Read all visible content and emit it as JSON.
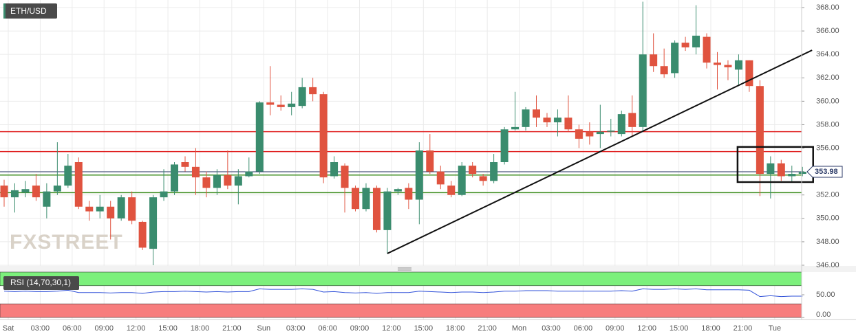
{
  "chart_data": [
    {
      "type": "candlestick",
      "title": "ETH/USD",
      "watermark": "FXSTREET",
      "categories": [
        "Sat",
        null,
        null,
        "03:00",
        null,
        null,
        "06:00",
        null,
        null,
        "09:00",
        null,
        null,
        "12:00",
        null,
        null,
        "15:00",
        null,
        null,
        "18:00",
        null,
        null,
        "21:00",
        null,
        null,
        "Sun",
        null,
        null,
        "03:00",
        null,
        null,
        "06:00",
        null,
        null,
        "09:00",
        null,
        null,
        "12:00",
        null,
        null,
        "15:00",
        null,
        null,
        "18:00",
        null,
        null,
        "21:00",
        null,
        null,
        "Mon",
        null,
        null,
        "03:00",
        null,
        null,
        "06:00",
        null,
        null,
        "09:00",
        null,
        null,
        "12:00",
        null,
        null,
        "15:00",
        null,
        null,
        "18:00",
        null,
        null,
        "21:00",
        null,
        null,
        "Tue",
        null,
        null,
        null
      ],
      "open": [
        352.8,
        351.8,
        352.2,
        352.8,
        351.0,
        352.3,
        352.8,
        354.8,
        351.0,
        350.6,
        351.0,
        350.0,
        351.8,
        349.7,
        347.4,
        351.8,
        352.3,
        354.8,
        354.4,
        353.5,
        352.6,
        353.7,
        352.8,
        353.6,
        354.0,
        359.9,
        359.7,
        359.5,
        359.6,
        361.2,
        360.6,
        353.6,
        354.5,
        352.6,
        350.8,
        352.6,
        349.0,
        352.3,
        352.6,
        351.6,
        355.8,
        354.0,
        352.8,
        352.0,
        354.5,
        353.6,
        353.2,
        354.8,
        357.6,
        357.8,
        359.3,
        358.6,
        358.2,
        358.6,
        357.6,
        357.4,
        357.2,
        357.4,
        357.2,
        359.0,
        357.8,
        364.0,
        363.0,
        362.4,
        365.0,
        364.6,
        365.5,
        363.3,
        363.1,
        362.7,
        363.5,
        361.3,
        353.8,
        354.7,
        353.6,
        353.8
      ],
      "high": [
        353.3,
        353.0,
        353.2,
        353.8,
        353.0,
        356.5,
        355.5,
        355.2,
        351.5,
        352.0,
        351.5,
        352.0,
        352.3,
        349.8,
        352.0,
        354.2,
        354.8,
        355.3,
        356.0,
        354.0,
        354.2,
        355.8,
        354.2,
        355.2,
        360.0,
        363.0,
        360.5,
        360.8,
        362.0,
        362.0,
        360.8,
        355.3,
        354.7,
        352.8,
        353.0,
        352.8,
        352.6,
        352.6,
        353.0,
        356.5,
        357.2,
        354.5,
        353.2,
        354.8,
        354.8,
        353.8,
        355.5,
        357.8,
        360.8,
        359.5,
        360.5,
        359.0,
        359.3,
        360.5,
        358.0,
        358.2,
        359.7,
        358.5,
        359.2,
        360.5,
        368.5,
        365.8,
        364.5,
        365.2,
        365.5,
        368.2,
        365.8,
        364.2,
        363.5,
        364.0,
        363.5,
        361.8,
        355.3,
        355.0,
        354.5,
        354.4
      ],
      "low": [
        351.0,
        350.5,
        351.8,
        351.5,
        350.0,
        352.0,
        352.6,
        350.8,
        349.8,
        350.0,
        348.2,
        349.8,
        349.5,
        347.3,
        346.0,
        351.5,
        352.0,
        354.0,
        352.0,
        351.8,
        352.0,
        352.5,
        351.2,
        353.5,
        353.8,
        358.8,
        359.2,
        358.8,
        359.4,
        360.0,
        353.0,
        353.4,
        350.5,
        350.6,
        350.6,
        348.8,
        347.0,
        352.0,
        350.8,
        349.5,
        353.8,
        352.5,
        351.8,
        351.9,
        353.5,
        352.8,
        353.0,
        354.6,
        357.5,
        357.5,
        357.8,
        357.8,
        357.0,
        357.4,
        356.0,
        356.3,
        356.0,
        357.0,
        357.0,
        357.0,
        357.5,
        362.5,
        362.0,
        362.0,
        364.3,
        364.0,
        362.8,
        361.0,
        361.8,
        361.3,
        360.8,
        351.9,
        351.7,
        353.2,
        353.1,
        353.6
      ],
      "close": [
        351.8,
        352.4,
        352.5,
        351.8,
        352.3,
        352.8,
        354.5,
        351.0,
        350.6,
        351.0,
        350.0,
        351.8,
        349.8,
        347.5,
        351.8,
        352.3,
        354.6,
        354.4,
        353.5,
        352.6,
        353.7,
        352.8,
        353.6,
        354.0,
        359.9,
        359.7,
        359.5,
        359.8,
        361.2,
        360.6,
        353.5,
        354.8,
        352.6,
        350.8,
        352.6,
        349.0,
        352.3,
        352.5,
        351.6,
        355.8,
        354.0,
        352.9,
        352.0,
        354.5,
        353.8,
        353.2,
        354.8,
        357.6,
        357.8,
        359.3,
        358.6,
        358.2,
        358.6,
        357.6,
        356.8,
        357.0,
        357.4,
        357.5,
        358.9,
        357.8,
        364.0,
        363.0,
        362.3,
        365.0,
        364.6,
        365.6,
        363.3,
        363.1,
        362.9,
        363.5,
        361.3,
        353.8,
        354.7,
        353.6,
        353.8,
        353.98
      ],
      "up_color": "#3a8c6e",
      "down_color": "#e0533f",
      "ylim": [
        346,
        368
      ],
      "yticks": [
        {
          "value": 346,
          "label": "346.00"
        },
        {
          "value": 348,
          "label": "348.00"
        },
        {
          "value": 350,
          "label": "350.00"
        },
        {
          "value": 352,
          "label": "352.00"
        },
        {
          "value": 354,
          "label": "354.00"
        },
        {
          "value": 356,
          "label": "356.00"
        },
        {
          "value": 358,
          "label": "358.00"
        },
        {
          "value": 360,
          "label": "360.00"
        },
        {
          "value": 362,
          "label": "362.00"
        },
        {
          "value": 364,
          "label": "364.00"
        },
        {
          "value": 366,
          "label": "366.00"
        },
        {
          "value": 368,
          "label": "368.00"
        }
      ],
      "grid": true,
      "last_price": 353.98,
      "hlines": [
        {
          "value": 357.4,
          "color": "#e02020"
        },
        {
          "value": 355.7,
          "color": "#e02020"
        },
        {
          "value": 353.7,
          "color": "#3c8c1e"
        },
        {
          "value": 352.2,
          "color": "#3c8c1e"
        }
      ],
      "trendline": {
        "x": [
          36,
          75.9
        ],
        "y": [
          347.0,
          364.36
        ]
      },
      "box": {
        "x": [
          68.9,
          76
        ],
        "y": [
          353.1,
          356.1
        ]
      }
    },
    {
      "type": "line",
      "title": "RSI (14,70,30,1)",
      "color": "#2e4fd8",
      "values": [
        58,
        57,
        58,
        57,
        57,
        58,
        60,
        55,
        55,
        55,
        54,
        55,
        55,
        53,
        56,
        57,
        57,
        58,
        57,
        56,
        57,
        56,
        57,
        57,
        63,
        62,
        62,
        62,
        63,
        62,
        56,
        57,
        55,
        54,
        55,
        53,
        55,
        55,
        55,
        58,
        57,
        56,
        55,
        56,
        56,
        55,
        56,
        58,
        58,
        59,
        59,
        59,
        58,
        58,
        58,
        58,
        58,
        58,
        59,
        58,
        63,
        62,
        62,
        63,
        62,
        63,
        61,
        61,
        61,
        61,
        60,
        46,
        48,
        46,
        47,
        47
      ],
      "ylim": [
        0,
        100
      ],
      "yticks": [
        {
          "value": 0,
          "label": "0.00"
        },
        {
          "value": 50,
          "label": "50.00"
        }
      ],
      "upper": 70,
      "lower": 30,
      "upper_color": "#7cf07c",
      "lower_color": "#f77d7d"
    }
  ]
}
